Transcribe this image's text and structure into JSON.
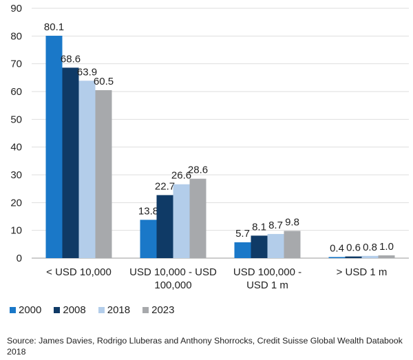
{
  "chart_data": {
    "type": "bar",
    "title": "",
    "xlabel": "",
    "ylabel": "",
    "ylim": [
      0,
      90
    ],
    "yticks": [
      0,
      10,
      20,
      30,
      40,
      50,
      60,
      70,
      80,
      90
    ],
    "categories": [
      [
        "< USD 10,000"
      ],
      [
        "USD 10,000 - USD",
        "100,000"
      ],
      [
        "USD 100,000 -",
        "USD 1 m"
      ],
      [
        "> USD 1 m"
      ]
    ],
    "series": [
      {
        "name": "2000",
        "color": "#1a78c8",
        "values": [
          80.1,
          13.8,
          5.7,
          0.4
        ]
      },
      {
        "name": "2008",
        "color": "#0f3a66",
        "values": [
          68.6,
          22.7,
          8.1,
          0.6
        ]
      },
      {
        "name": "2018",
        "color": "#b3cdea",
        "values": [
          63.9,
          26.6,
          8.7,
          0.8
        ]
      },
      {
        "name": "2023",
        "color": "#a7a9ac",
        "values": [
          60.5,
          28.6,
          9.8,
          1.0
        ]
      }
    ],
    "value_labels": [
      [
        "80.1",
        "13.8",
        "5.7",
        "0.4"
      ],
      [
        "68.6",
        "22.7",
        "8.1",
        "0.6"
      ],
      [
        "63.9",
        "26.6",
        "8.7",
        "0.8"
      ],
      [
        "60.5",
        "28.6",
        "9.8",
        "1.0"
      ]
    ],
    "grid": true,
    "legend_position": "bottom-left"
  },
  "source": "Source: James Davies, Rodrigo Lluberas and Anthony Shorrocks, Credit Suisse Global Wealth Databook 2018"
}
